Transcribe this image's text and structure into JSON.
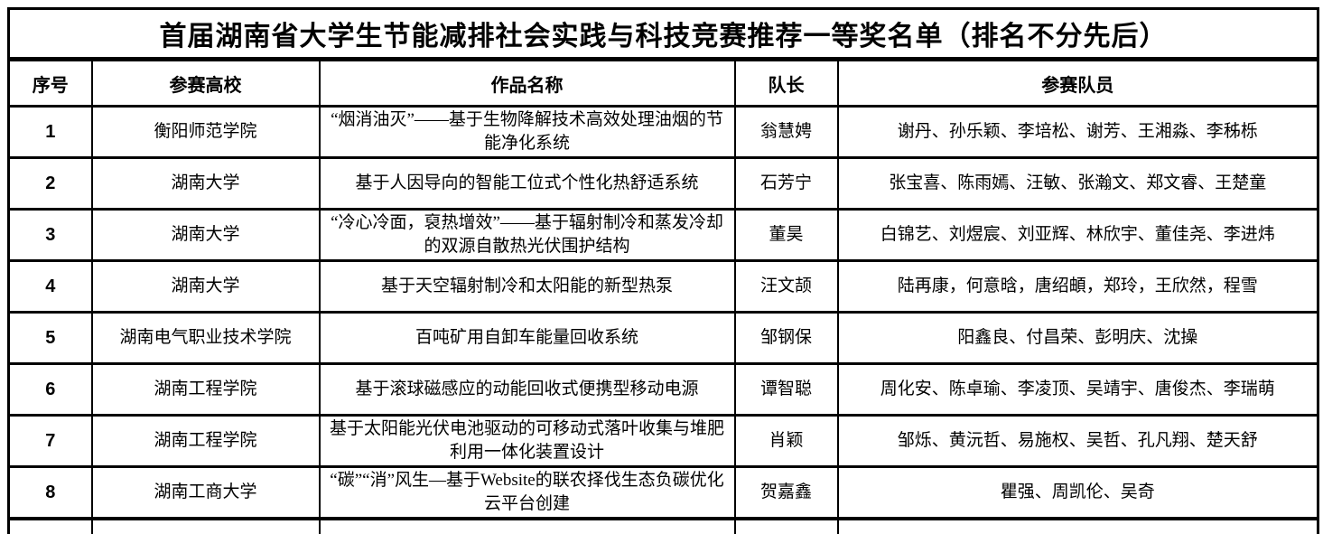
{
  "title": "首届湖南省大学生节能减排社会实践与科技竞赛推荐一等奖名单（排名不分先后）",
  "columns": [
    "序号",
    "参赛高校",
    "作品名称",
    "队长",
    "参赛队员"
  ],
  "rows": [
    {
      "no": "1",
      "school": "衡阳师范学院",
      "work": "“烟消油灭”——基于生物降解技术高效处理油烟的节能净化系统",
      "leader": "翁慧娉",
      "members": "谢丹、孙乐颖、李培松、谢芳、王湘淼、李秭栎"
    },
    {
      "no": "2",
      "school": "湖南大学",
      "work": "基于人因导向的智能工位式个性化热舒适系统",
      "leader": "石芳宁",
      "members": "张宝喜、陈雨嫣、汪敏、张瀚文、郑文睿、王楚童"
    },
    {
      "no": "3",
      "school": "湖南大学",
      "work": "“冷心冷面，裒热增效”——基于辐射制冷和蒸发冷却的双源自散热光伏围护结构",
      "leader": "董昊",
      "members": "白锦艺、刘煜宸、刘亚辉、林欣宇、董佳尧、李进炜"
    },
    {
      "no": "4",
      "school": "湖南大学",
      "work": "基于天空辐射制冷和太阳能的新型热泵",
      "leader": "汪文颉",
      "members": "陆再康，何意晗，唐绍頔，郑玲，王欣然，程雪"
    },
    {
      "no": "5",
      "school": "湖南电气职业技术学院",
      "work": "百吨矿用自卸车能量回收系统",
      "leader": "邹钢保",
      "members": "阳鑫良、付昌荣、彭明庆、沈操"
    },
    {
      "no": "6",
      "school": "湖南工程学院",
      "work": "基于滚球磁感应的动能回收式便携型移动电源",
      "leader": "谭智聪",
      "members": "周化安、陈卓瑜、李凌顶、吴靖宇、唐俊杰、李瑞萌"
    },
    {
      "no": "7",
      "school": "湖南工程学院",
      "work": "基于太阳能光伏电池驱动的可移动式落叶收集与堆肥利用一体化装置设计",
      "leader": "肖颖",
      "members": "邹烁、黄沅哲、易施权、吴哲、孔凡翔、楚天舒"
    },
    {
      "no": "8",
      "school": "湖南工商大学",
      "work": "“碳”“消”风生—基于Website的联农择伐生态负碳优化云平台创建",
      "leader": "贺嘉鑫",
      "members": "瞿强、周凯伦、吴奇"
    }
  ]
}
